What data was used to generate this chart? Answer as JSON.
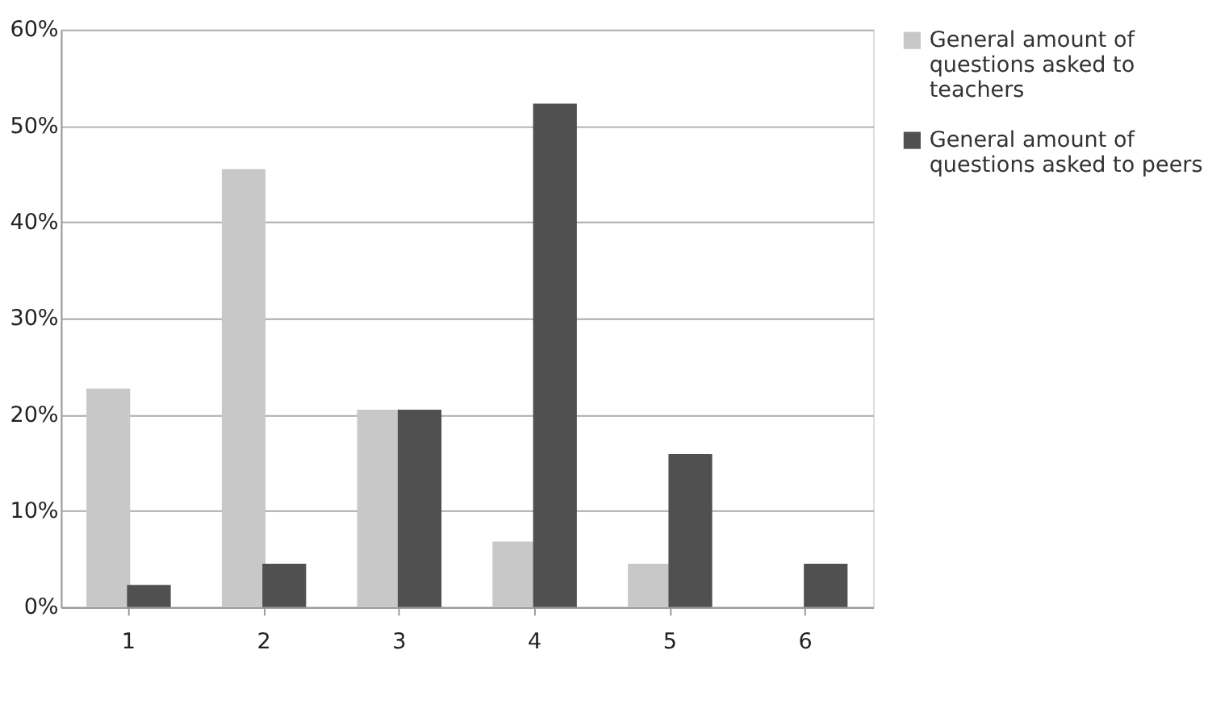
{
  "chart_data": {
    "type": "bar",
    "categories": [
      "1",
      "2",
      "3",
      "4",
      "5",
      "6"
    ],
    "series": [
      {
        "name": "General amount of questions asked to teachers",
        "color": "#c8c8c8",
        "values": [
          22.7,
          45.5,
          20.5,
          6.8,
          4.5,
          0
        ]
      },
      {
        "name": "General amount of questions asked to peers",
        "color": "#505050",
        "values": [
          2.3,
          4.5,
          20.5,
          52.3,
          15.9,
          4.5
        ]
      }
    ],
    "ylim": [
      0,
      60
    ],
    "yticks": [
      {
        "value": 0,
        "label": "0%"
      },
      {
        "value": 10,
        "label": "10%"
      },
      {
        "value": 20,
        "label": "20%"
      },
      {
        "value": 30,
        "label": "30%"
      },
      {
        "value": 40,
        "label": "40%"
      },
      {
        "value": 50,
        "label": "50%"
      },
      {
        "value": 60,
        "label": "60%"
      }
    ],
    "grid": "y",
    "legend": "right"
  }
}
